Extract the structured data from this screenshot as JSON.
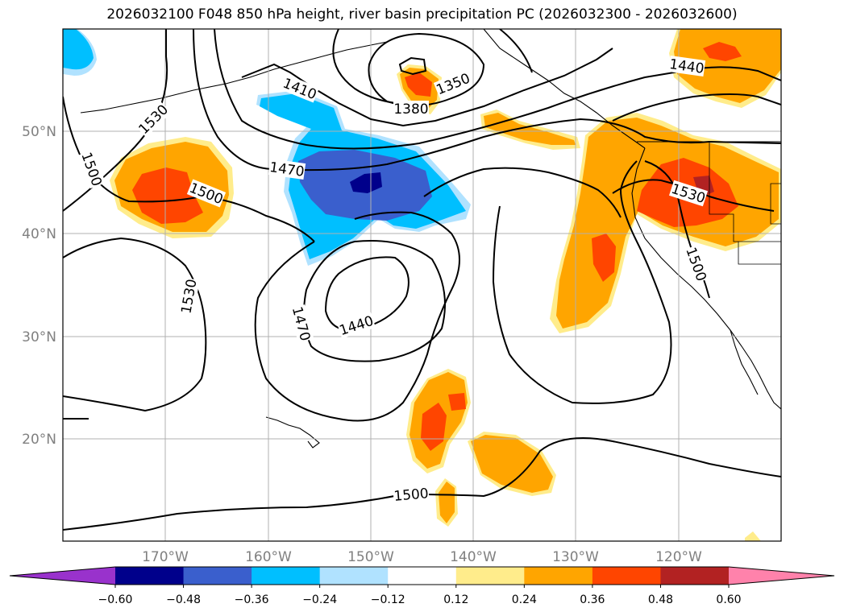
{
  "title": "2026032100 F048 850 hPa height, river basin precipitation PC (2026032300 - 2026032600)",
  "latitude_labels": [
    "50°N",
    "40°N",
    "30°N",
    "20°N"
  ],
  "longitude_labels": [
    "170°W",
    "160°W",
    "150°W",
    "140°W",
    "130°W",
    "120°W"
  ],
  "contour_labels": [
    "1530",
    "1500",
    "1410",
    "1350",
    "1380",
    "1440",
    "1470",
    "1500",
    "1530",
    "1500",
    "1440",
    "1470",
    "1500"
  ],
  "colorbar": {
    "ticks": [
      "−0.60",
      "−0.48",
      "−0.36",
      "−0.24",
      "−0.12",
      "0.12",
      "0.24",
      "0.36",
      "0.48",
      "0.60"
    ],
    "colors": [
      "#9932cc",
      "#00008b",
      "#3a5fcd",
      "#00bfff",
      "#b0e2ff",
      "#ffffff",
      "#ffec8b",
      "#ffa500",
      "#ff4500",
      "#b22222",
      "#ff82ab"
    ]
  },
  "colors": {
    "neg_strong": "#00008b",
    "neg_mid": "#3a5fcd",
    "neg_light": "#00bfff",
    "neg_faint": "#b0e2ff",
    "pos_faint": "#ffec8b",
    "pos_light": "#ffa500",
    "pos_mid": "#ff4500",
    "pos_strong": "#b22222"
  }
}
